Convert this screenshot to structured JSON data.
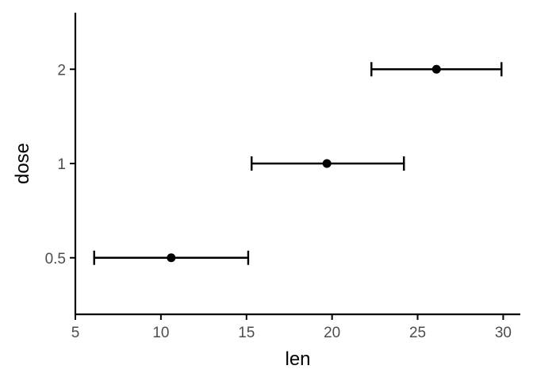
{
  "chart_data": {
    "type": "scatter",
    "title": "",
    "xlabel": "len",
    "ylabel": "dose",
    "xlim": [
      5,
      31
    ],
    "x_ticks": [
      5,
      10,
      15,
      20,
      25,
      30
    ],
    "categories": [
      "0.5",
      "1",
      "2"
    ],
    "series": [
      {
        "points": [
          {
            "category": "0.5",
            "mean": 10.6,
            "lower": 6.1,
            "upper": 15.1
          },
          {
            "category": "1",
            "mean": 19.7,
            "lower": 15.3,
            "upper": 24.2
          },
          {
            "category": "2",
            "mean": 26.1,
            "lower": 22.3,
            "upper": 29.9
          }
        ]
      }
    ],
    "grid": false,
    "legend": "none",
    "colors": {
      "points": "#000000",
      "axis": "#000000",
      "tick_text": "#4d4d4d"
    }
  }
}
